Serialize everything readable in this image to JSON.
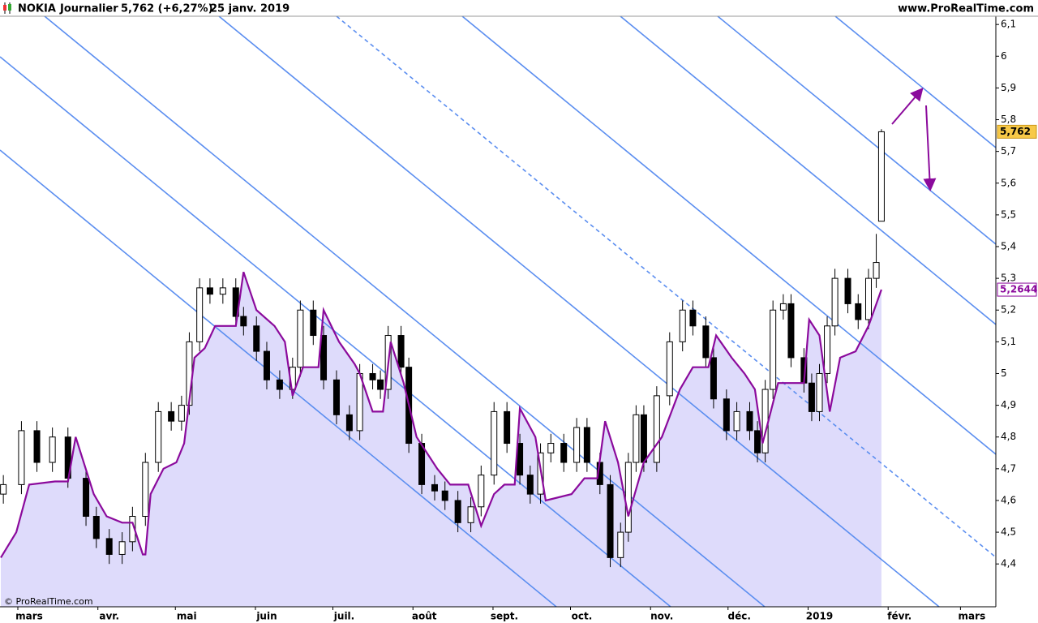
{
  "header": {
    "symbol": "NOKIA",
    "period": "Journalier",
    "quote": "5,762 (+6,27%)",
    "date": "25 janv. 2019",
    "site": "www.ProRealTime.com"
  },
  "footer": {
    "copyright": "© ProRealTime.com"
  },
  "chart_data": {
    "type": "candlestick",
    "x": [
      -10,
      -3,
      3,
      9,
      15,
      22,
      26,
      31,
      36,
      40,
      45,
      50,
      55,
      59,
      62,
      66,
      70,
      75,
      80,
      83,
      88,
      92,
      97,
      102,
      105,
      110,
      114,
      119,
      124,
      128,
      133,
      136,
      139,
      144,
      147,
      152,
      157,
      161,
      166,
      171,
      175,
      180,
      185,
      190,
      194,
      198,
      202,
      207,
      212,
      216,
      221,
      225,
      229,
      232,
      235,
      238,
      243,
      248,
      253,
      257,
      262,
      265,
      270,
      274,
      279,
      282,
      285,
      288,
      292,
      295,
      300,
      303,
      306,
      309,
      312,
      317,
      321,
      325,
      328,
      330
    ],
    "open": [
      4.62,
      4.65,
      4.82,
      4.72,
      4.8,
      4.67,
      4.55,
      4.48,
      4.43,
      4.47,
      4.55,
      4.72,
      4.88,
      4.85,
      4.9,
      5.1,
      5.27,
      5.25,
      5.27,
      5.18,
      5.15,
      5.07,
      4.98,
      4.95,
      5.02,
      5.2,
      5.12,
      4.98,
      4.87,
      4.82,
      5.0,
      4.98,
      4.95,
      5.12,
      5.02,
      4.78,
      4.65,
      4.63,
      4.6,
      4.53,
      4.58,
      4.68,
      4.88,
      4.78,
      4.68,
      4.62,
      4.75,
      4.78,
      4.72,
      4.83,
      4.72,
      4.65,
      4.42,
      4.5,
      4.72,
      4.87,
      4.72,
      4.93,
      5.1,
      5.2,
      5.15,
      5.05,
      4.92,
      4.82,
      4.88,
      4.82,
      4.75,
      4.95,
      5.2,
      5.22,
      5.05,
      4.97,
      4.88,
      5.0,
      5.15,
      5.3,
      5.22,
      5.17,
      5.3,
      5.48
    ],
    "high": [
      4.68,
      4.85,
      4.85,
      4.83,
      4.83,
      4.7,
      4.58,
      4.51,
      4.5,
      4.58,
      4.75,
      4.91,
      4.91,
      4.93,
      5.13,
      5.3,
      5.3,
      5.3,
      5.3,
      5.21,
      5.18,
      5.1,
      5.01,
      5.05,
      5.23,
      5.23,
      5.15,
      5.01,
      4.9,
      5.03,
      5.03,
      5.01,
      5.15,
      5.15,
      5.05,
      4.81,
      4.68,
      4.66,
      4.63,
      4.61,
      4.71,
      4.91,
      4.91,
      4.81,
      4.71,
      4.78,
      4.81,
      4.81,
      4.86,
      4.86,
      4.75,
      4.68,
      4.53,
      4.75,
      4.9,
      4.9,
      4.96,
      5.13,
      5.23,
      5.23,
      5.18,
      5.08,
      4.95,
      4.91,
      4.91,
      4.85,
      4.98,
      5.23,
      5.25,
      5.25,
      5.08,
      5.0,
      5.03,
      5.18,
      5.33,
      5.33,
      5.25,
      5.33,
      5.44,
      5.77
    ],
    "low": [
      4.59,
      4.62,
      4.69,
      4.69,
      4.64,
      4.52,
      4.45,
      4.4,
      4.4,
      4.44,
      4.52,
      4.69,
      4.82,
      4.82,
      4.87,
      5.07,
      5.22,
      5.22,
      5.15,
      5.12,
      5.04,
      4.95,
      4.92,
      4.92,
      4.99,
      5.09,
      4.95,
      4.84,
      4.79,
      4.79,
      4.95,
      4.92,
      4.92,
      4.99,
      4.75,
      4.62,
      4.6,
      4.57,
      4.5,
      4.5,
      4.55,
      4.65,
      4.75,
      4.65,
      4.59,
      4.59,
      4.72,
      4.69,
      4.69,
      4.69,
      4.62,
      4.39,
      4.39,
      4.47,
      4.69,
      4.69,
      4.69,
      4.9,
      5.07,
      5.12,
      5.02,
      4.89,
      4.79,
      4.79,
      4.79,
      4.72,
      4.72,
      4.92,
      5.17,
      5.02,
      4.94,
      4.85,
      4.85,
      4.97,
      5.12,
      5.19,
      5.14,
      5.14,
      5.27,
      5.48
    ],
    "close": [
      4.65,
      4.82,
      4.72,
      4.8,
      4.67,
      4.55,
      4.48,
      4.43,
      4.47,
      4.55,
      4.72,
      4.88,
      4.85,
      4.9,
      5.1,
      5.27,
      5.25,
      5.27,
      5.18,
      5.15,
      5.07,
      4.98,
      4.95,
      5.02,
      5.2,
      5.12,
      4.98,
      4.87,
      4.82,
      5.0,
      4.98,
      4.95,
      5.12,
      5.02,
      4.78,
      4.65,
      4.63,
      4.6,
      4.53,
      4.58,
      4.68,
      4.88,
      4.78,
      4.68,
      4.62,
      4.75,
      4.78,
      4.72,
      4.83,
      4.72,
      4.65,
      4.42,
      4.5,
      4.72,
      4.87,
      4.72,
      4.93,
      5.1,
      5.2,
      5.15,
      5.05,
      4.92,
      4.82,
      4.88,
      4.82,
      4.75,
      4.95,
      5.2,
      5.22,
      5.05,
      4.97,
      4.88,
      5.0,
      5.15,
      5.3,
      5.22,
      5.17,
      5.3,
      5.35,
      5.762
    ],
    "stop": {
      "color": "#8b0a9c",
      "fill": "#dedbfb",
      "x": [
        -11,
        -5,
        0,
        10,
        15,
        18,
        25,
        30,
        36,
        40,
        44,
        45,
        47,
        52,
        57,
        60,
        64,
        68,
        72,
        80,
        83,
        88,
        95,
        99,
        102,
        106,
        112,
        114,
        120,
        126,
        128,
        133,
        137,
        140,
        145,
        150,
        158,
        163,
        170,
        175,
        180,
        184,
        188,
        190,
        196,
        200,
        210,
        215,
        220,
        223,
        228,
        232,
        238,
        245,
        252,
        257,
        263,
        266,
        272,
        277,
        281,
        284,
        290,
        295,
        300,
        302,
        306,
        310,
        314,
        320,
        325,
        330
      ],
      "values": [
        4.42,
        4.5,
        4.65,
        4.66,
        4.66,
        4.8,
        4.62,
        4.55,
        4.53,
        4.53,
        4.43,
        4.43,
        4.62,
        4.7,
        4.72,
        4.78,
        5.05,
        5.08,
        5.15,
        5.15,
        5.32,
        5.2,
        5.15,
        5.1,
        4.93,
        5.02,
        5.02,
        5.2,
        5.1,
        5.03,
        5.0,
        4.88,
        4.88,
        5.1,
        4.97,
        4.8,
        4.7,
        4.65,
        4.65,
        4.52,
        4.62,
        4.65,
        4.65,
        4.89,
        4.8,
        4.6,
        4.62,
        4.67,
        4.67,
        4.85,
        4.72,
        4.55,
        4.72,
        4.8,
        4.95,
        5.02,
        5.02,
        5.12,
        5.05,
        5.0,
        4.95,
        4.78,
        4.97,
        4.97,
        4.97,
        5.17,
        5.12,
        4.88,
        5.05,
        5.07,
        5.15,
        5.2644
      ]
    },
    "price_labels": [
      {
        "value": 5.762,
        "label": "5,762"
      },
      {
        "value": 5.2644,
        "label": "5,2644"
      }
    ],
    "xlim": [
      -11.3,
      374.3
    ],
    "xticks": [
      {
        "value": 0,
        "label": "mars"
      },
      {
        "value": 31,
        "label": "avr."
      },
      {
        "value": 61,
        "label": "mai"
      },
      {
        "value": 92,
        "label": "juin"
      },
      {
        "value": 122,
        "label": "juil."
      },
      {
        "value": 153,
        "label": "août"
      },
      {
        "value": 184,
        "label": "sept."
      },
      {
        "value": 214,
        "label": "oct."
      },
      {
        "value": 245,
        "label": "nov."
      },
      {
        "value": 275,
        "label": "déc."
      },
      {
        "value": 306,
        "label": "2019"
      },
      {
        "value": 337,
        "label": "févr."
      },
      {
        "value": 365,
        "label": "mars"
      }
    ],
    "ylim": [
      4.265,
      6.126
    ],
    "yticks": [
      {
        "value": 6.1,
        "label": "6,1"
      },
      6,
      {
        "value": 5.9,
        "label": "5,9"
      },
      {
        "value": 5.8,
        "label": "5,8"
      },
      {
        "value": 5.7,
        "label": "5,7"
      },
      {
        "value": 5.6,
        "label": "5,6"
      },
      {
        "value": 5.5,
        "label": "5,5"
      },
      {
        "value": 5.4,
        "label": "5,4"
      },
      {
        "value": 5.3,
        "label": "5,3"
      },
      {
        "value": 5.2,
        "label": "5,2"
      },
      {
        "value": 5.1,
        "label": "5,1"
      },
      5,
      {
        "value": 4.9,
        "label": "4,9"
      },
      {
        "value": 4.8,
        "label": "4,8"
      },
      {
        "value": 4.7,
        "label": "4,7"
      },
      {
        "value": 4.6,
        "label": "4,6"
      },
      {
        "value": 4.5,
        "label": "4,5"
      },
      {
        "value": 4.4,
        "label": "4,4"
      }
    ]
  }
}
